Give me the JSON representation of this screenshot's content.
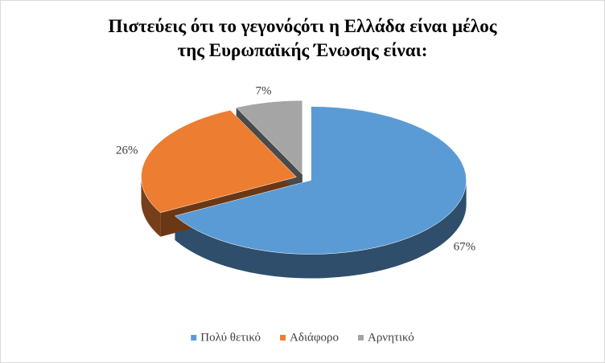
{
  "chart_data": {
    "type": "pie",
    "title": "Πιστεύεις ότι το γεγονόςότι η Ελλάδα είναι μέλος\nτης Ευρωπαϊκής Ένωσης είναι:",
    "categories": [
      "Πολύ θετικό",
      "Αδιάφορο",
      "Αρνητικό"
    ],
    "values": [
      67,
      26,
      7
    ],
    "value_labels": [
      "67%",
      "26%",
      "7%"
    ],
    "colors": [
      "#5b9bd5",
      "#ed7d31",
      "#a5a5a5"
    ],
    "legend": "bottom"
  }
}
